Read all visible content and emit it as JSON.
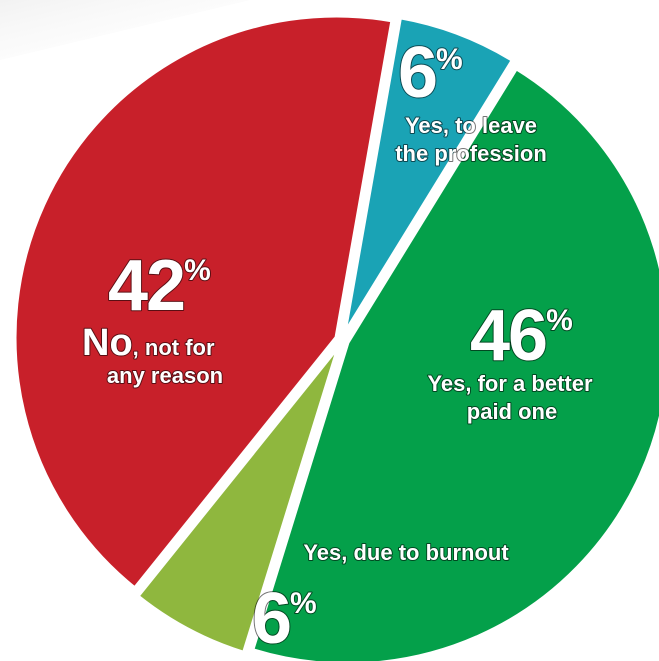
{
  "chart_data": {
    "type": "pie",
    "slices": [
      {
        "value": 6,
        "value_label": "6",
        "percent_sign": "%",
        "caption_lines": [
          "Yes, to leave",
          "the profession"
        ],
        "color": "#1aa3b5"
      },
      {
        "value": 46,
        "value_label": "46",
        "percent_sign": "%",
        "caption_lines": [
          "Yes, for a better",
          "paid one"
        ],
        "color": "#04a04a"
      },
      {
        "value": 6,
        "value_label": "6",
        "percent_sign": "%",
        "caption_lines": [
          "Yes, due to burnout"
        ],
        "color": "#8fb73e"
      },
      {
        "value": 42,
        "value_label": "42",
        "percent_sign": "%",
        "caption_emphasis": "No",
        "caption_lines": [
          ", not for",
          "any reason"
        ],
        "color": "#c8202a"
      }
    ],
    "title": "",
    "legend": "none"
  }
}
